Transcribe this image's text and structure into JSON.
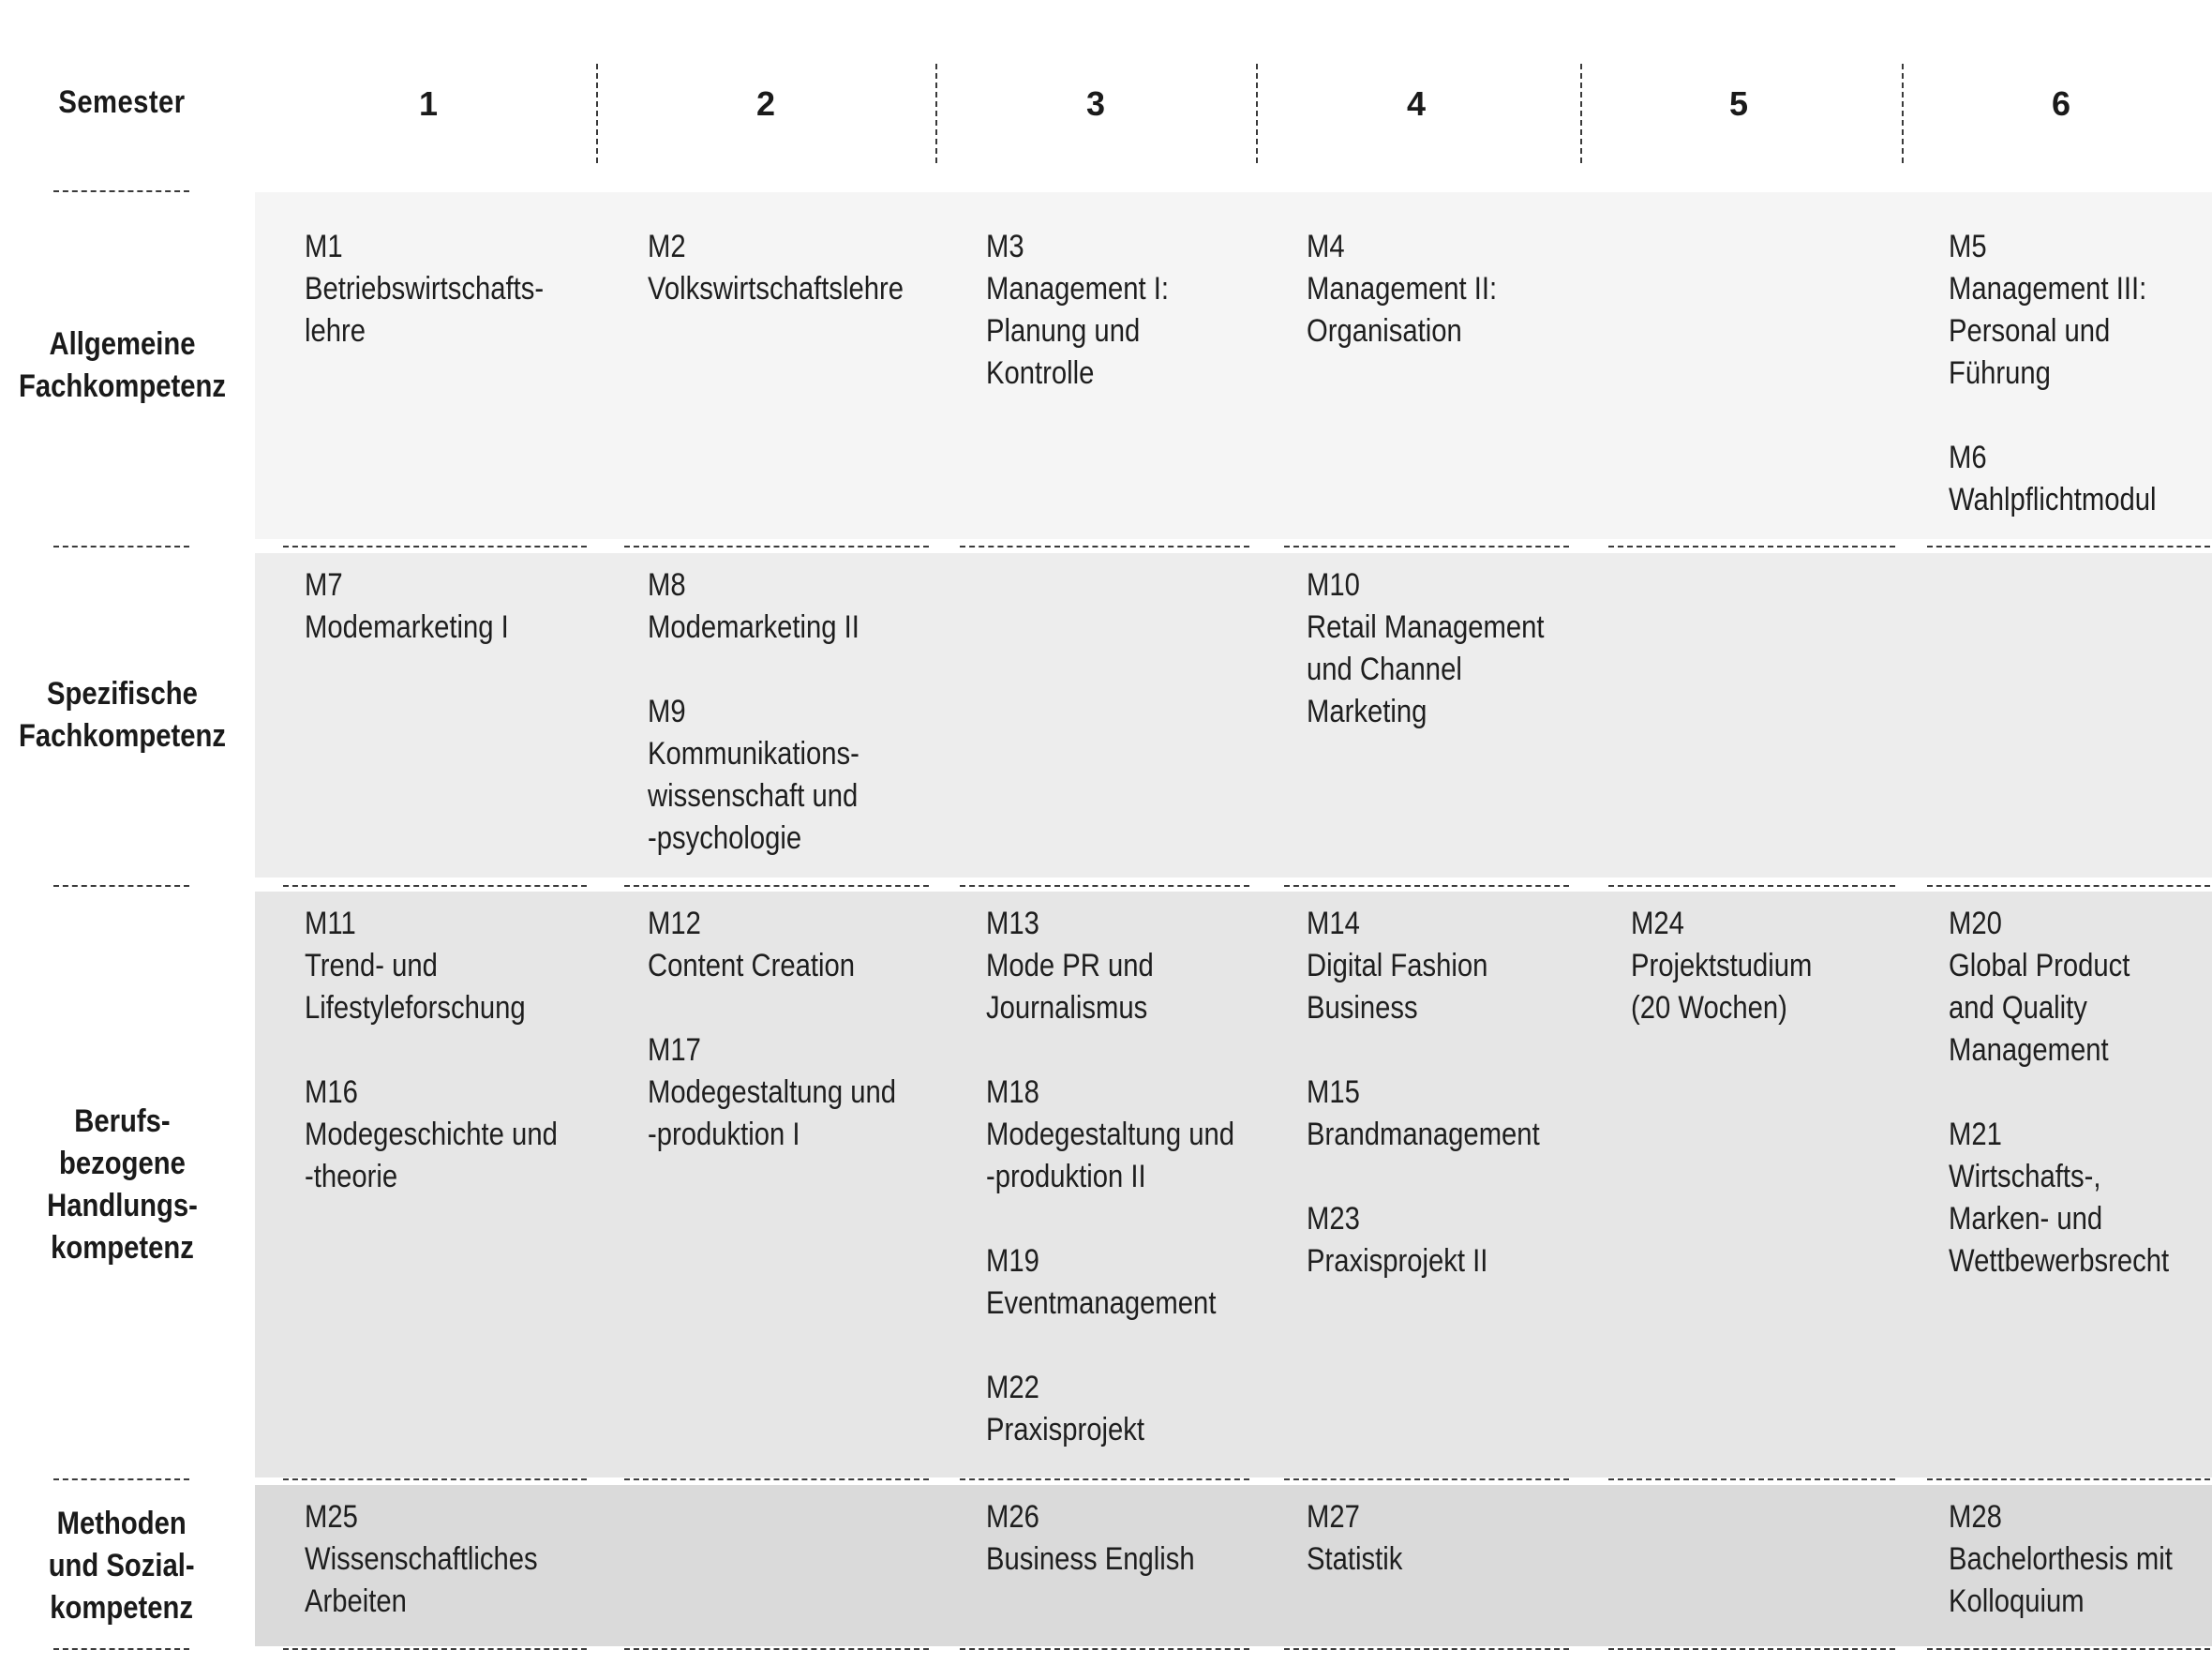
{
  "header": {
    "semester_label": "Semester",
    "semesters": [
      "1",
      "2",
      "3",
      "4",
      "5",
      "6"
    ]
  },
  "rows": [
    {
      "label": [
        "Allgemeine",
        "Fachkompetenz"
      ],
      "background": "#f5f5f5",
      "cells": [
        [
          {
            "code": "M1",
            "title": [
              "Betriebswirtschafts-",
              "lehre"
            ]
          }
        ],
        [
          {
            "code": "M2",
            "title": [
              "Volkswirtschaftslehre"
            ]
          }
        ],
        [
          {
            "code": "M3",
            "title": [
              "Management I:",
              "Planung und",
              "Kontrolle"
            ]
          }
        ],
        [
          {
            "code": "M4",
            "title": [
              "Management II:",
              "Organisation"
            ]
          }
        ],
        [],
        [
          {
            "code": "M5",
            "title": [
              "Management III:",
              "Personal und",
              "Führung"
            ]
          },
          {
            "code": "M6",
            "title": [
              "Wahlpflichtmodul"
            ]
          }
        ]
      ]
    },
    {
      "label": [
        "Spezifische",
        "Fachkompetenz"
      ],
      "background": "#ededed",
      "cells": [
        [
          {
            "code": "M7",
            "title": [
              "Modemarketing I"
            ]
          }
        ],
        [
          {
            "code": "M8",
            "title": [
              "Modemarketing II"
            ]
          },
          {
            "code": "M9",
            "title": [
              "Kommunikations-",
              "wissenschaft und",
              "-psychologie"
            ]
          }
        ],
        [],
        [
          {
            "code": "M10",
            "title": [
              "Retail Management",
              "und Channel",
              "Marketing"
            ]
          }
        ],
        [],
        []
      ]
    },
    {
      "label": [
        "Berufs-",
        "bezogene",
        "Handlungs-",
        "kompetenz"
      ],
      "background": "#e6e6e6",
      "cells": [
        [
          {
            "code": "M11",
            "title": [
              "Trend- und",
              "Lifestyleforschung"
            ]
          },
          {
            "code": "M16",
            "title": [
              "Modegeschichte und",
              "-theorie"
            ]
          }
        ],
        [
          {
            "code": "M12",
            "title": [
              "Content Creation"
            ]
          },
          {
            "code": "M17",
            "title": [
              "Modegestaltung und",
              "-produktion I"
            ]
          }
        ],
        [
          {
            "code": "M13",
            "title": [
              "Mode PR und",
              "Journalismus"
            ]
          },
          {
            "code": "M18",
            "title": [
              "Modegestaltung und",
              "-produktion II"
            ]
          },
          {
            "code": "M19",
            "title": [
              "Eventmanagement"
            ]
          },
          {
            "code": "M22",
            "title": [
              "Praxisprojekt"
            ]
          }
        ],
        [
          {
            "code": "M14",
            "title": [
              "Digital Fashion",
              "Business"
            ]
          },
          {
            "code": "M15",
            "title": [
              "Brandmanagement"
            ]
          },
          {
            "code": "M23",
            "title": [
              "Praxisprojekt II"
            ]
          }
        ],
        [
          {
            "code": "M24",
            "title": [
              "Projektstudium",
              "(20 Wochen)"
            ]
          }
        ],
        [
          {
            "code": "M20",
            "title": [
              "Global Product",
              "and Quality",
              "Management"
            ]
          },
          {
            "code": "M21",
            "title": [
              "Wirtschafts-,",
              "Marken- und",
              "Wettbewerbsrecht"
            ]
          }
        ]
      ]
    },
    {
      "label": [
        "Methoden",
        "und Sozial-",
        "kompetenz"
      ],
      "background": "#dadada",
      "cells": [
        [
          {
            "code": "M25",
            "title": [
              "Wissenschaftliches",
              "Arbeiten"
            ]
          }
        ],
        [],
        [
          {
            "code": "M26",
            "title": [
              "Business English"
            ]
          }
        ],
        [
          {
            "code": "M27",
            "title": [
              "Statistik"
            ]
          }
        ],
        [],
        [
          {
            "code": "M28",
            "title": [
              "Bachelorthesis mit",
              "Kolloquium"
            ]
          }
        ]
      ]
    }
  ]
}
